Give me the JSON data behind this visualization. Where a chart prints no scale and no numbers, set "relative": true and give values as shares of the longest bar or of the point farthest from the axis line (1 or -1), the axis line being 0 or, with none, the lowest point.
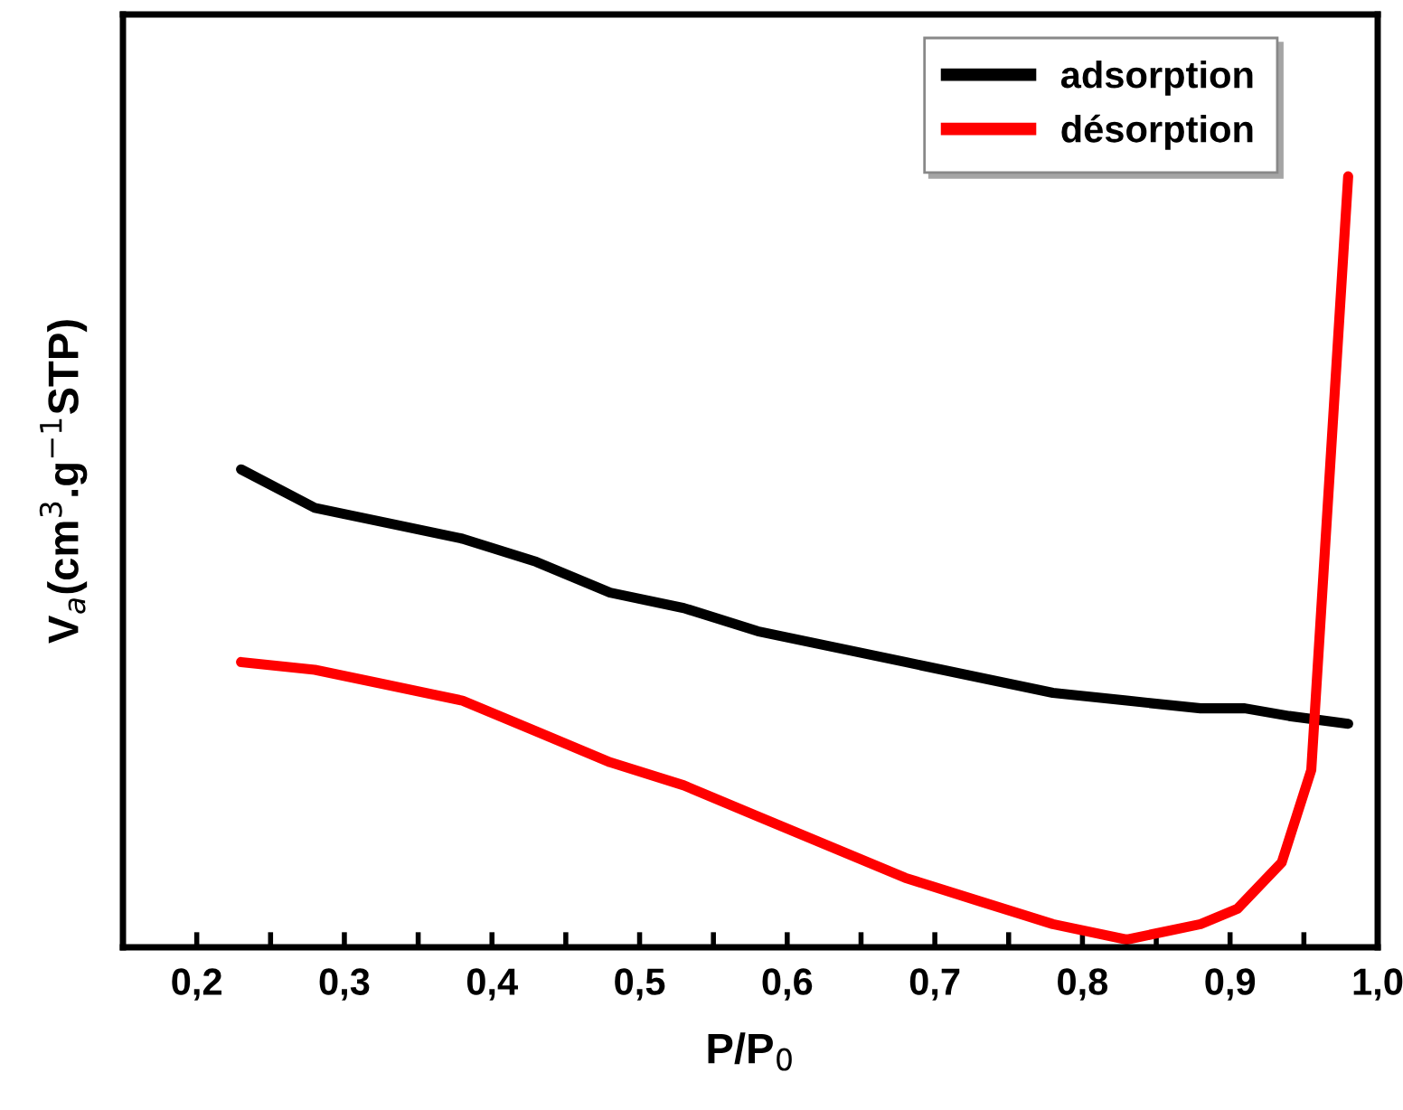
{
  "chart_data": {
    "type": "line",
    "xlabel": "P/P$_{0}$",
    "ylabel": "V$_{a}$(cm$^{3}$.g$^{−1}$STP)",
    "relative": true,
    "legend": "top right",
    "xlim": [
      0.15,
      1.0
    ],
    "xticks": [
      {
        "value": 0.15,
        "label": null
      },
      {
        "value": 0.2,
        "label": "0,2"
      },
      {
        "value": 0.25,
        "label": null
      },
      {
        "value": 0.3,
        "label": "0,3"
      },
      {
        "value": 0.35,
        "label": null
      },
      {
        "value": 0.4,
        "label": "0,4"
      },
      {
        "value": 0.45,
        "label": null
      },
      {
        "value": 0.5,
        "label": "0,5"
      },
      {
        "value": 0.55,
        "label": null
      },
      {
        "value": 0.6,
        "label": "0,6"
      },
      {
        "value": 0.65,
        "label": null
      },
      {
        "value": 0.7,
        "label": "0,7"
      },
      {
        "value": 0.75,
        "label": null
      },
      {
        "value": 0.8,
        "label": "0,8"
      },
      {
        "value": 0.85,
        "label": null
      },
      {
        "value": 0.9,
        "label": "0,9"
      },
      {
        "value": 0.95,
        "label": null
      },
      {
        "value": 1.0,
        "label": "1,0"
      }
    ],
    "series": [
      {
        "name": "adsorption",
        "color": "#000000",
        "x": [
          0.23,
          0.28,
          0.33,
          0.38,
          0.43,
          0.48,
          0.53,
          0.58,
          0.63,
          0.68,
          0.73,
          0.78,
          0.83,
          0.88,
          0.91,
          0.94,
          0.98
        ],
        "values": [
          0.62,
          0.57,
          0.55,
          0.53,
          0.5,
          0.46,
          0.44,
          0.41,
          0.39,
          0.37,
          0.35,
          0.33,
          0.32,
          0.31,
          0.31,
          0.3,
          0.29
        ]
      },
      {
        "name": "désorption",
        "color": "#ff0000",
        "x": [
          0.23,
          0.28,
          0.33,
          0.38,
          0.43,
          0.48,
          0.53,
          0.58,
          0.63,
          0.68,
          0.73,
          0.78,
          0.83,
          0.88,
          0.905,
          0.935,
          0.955,
          0.98
        ],
        "values": [
          0.37,
          0.36,
          0.34,
          0.32,
          0.28,
          0.24,
          0.21,
          0.17,
          0.13,
          0.09,
          0.06,
          0.03,
          0.01,
          0.03,
          0.05,
          0.11,
          0.23,
          1.0
        ]
      }
    ]
  }
}
